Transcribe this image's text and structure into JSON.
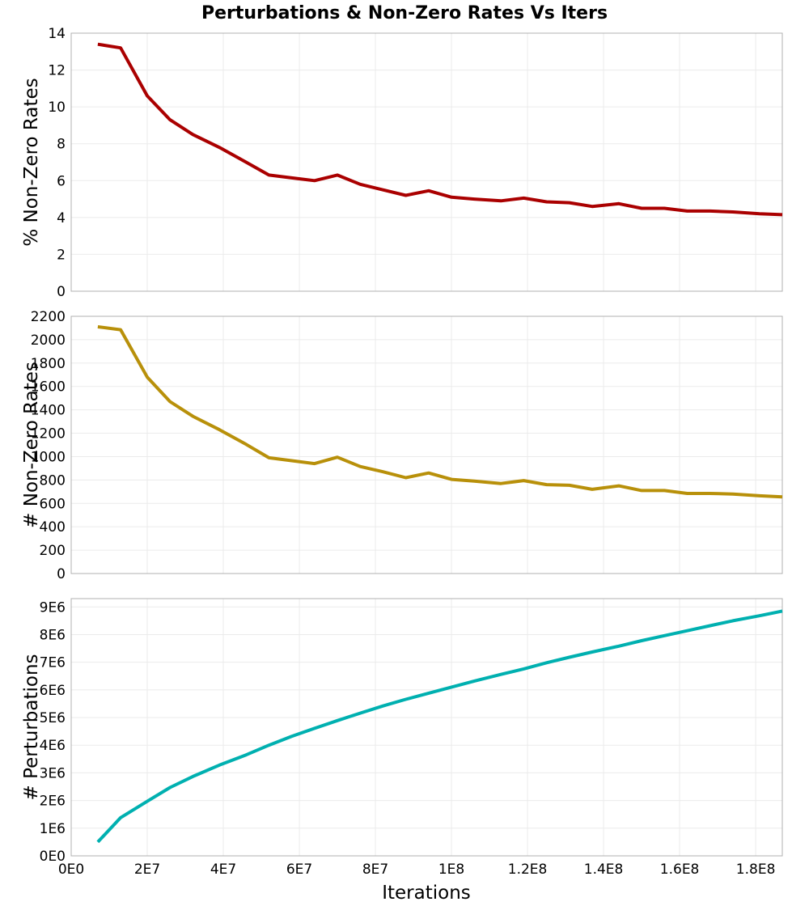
{
  "chart_data": {
    "type": "line",
    "title": "Perturbations & Non-Zero Rates Vs Iters",
    "xlabel": "Iterations",
    "xlim": [
      0,
      187000000
    ],
    "xticks": [
      0,
      20000000,
      40000000,
      60000000,
      80000000,
      100000000,
      120000000,
      140000000,
      160000000,
      180000000
    ],
    "xtick_labels": [
      "0E0",
      "2E7",
      "4E7",
      "6E7",
      "8E7",
      "1E8",
      "1.2E8",
      "1.4E8",
      "1.6E8",
      "1.8E8"
    ],
    "grid": true,
    "x": [
      7000000,
      13000000,
      20000000,
      26000000,
      32000000,
      39000000,
      46000000,
      52000000,
      58000000,
      64000000,
      70000000,
      76000000,
      82000000,
      88000000,
      94000000,
      100000000,
      106000000,
      113000000,
      119000000,
      125000000,
      131000000,
      137000000,
      144000000,
      150000000,
      156000000,
      162000000,
      168000000,
      174000000,
      181000000,
      187000000
    ],
    "subplots": [
      {
        "ylabel": "% Non-Zero Rates",
        "ylim": [
          0,
          14
        ],
        "yticks": [
          0,
          2,
          4,
          6,
          8,
          10,
          12,
          14
        ],
        "ytick_labels": [
          "0",
          "2",
          "4",
          "6",
          "8",
          "10",
          "12",
          "14"
        ],
        "color": "#aa0000",
        "values": [
          13.4,
          13.2,
          10.6,
          9.3,
          8.5,
          7.8,
          7.0,
          6.3,
          6.15,
          6.0,
          6.3,
          5.8,
          5.5,
          5.2,
          5.45,
          5.1,
          5.0,
          4.9,
          5.05,
          4.85,
          4.8,
          4.6,
          4.75,
          4.5,
          4.5,
          4.35,
          4.35,
          4.3,
          4.2,
          4.15
        ]
      },
      {
        "ylabel": "# Non-Zero Rates",
        "ylim": [
          0,
          2200
        ],
        "yticks": [
          0,
          200,
          400,
          600,
          800,
          1000,
          1200,
          1400,
          1600,
          1800,
          2000,
          2200
        ],
        "ytick_labels": [
          "0",
          "200",
          "400",
          "600",
          "800",
          "1000",
          "1200",
          "1400",
          "1600",
          "1800",
          "2000",
          "2200"
        ],
        "color": "#b8900a",
        "values": [
          2110,
          2085,
          1680,
          1470,
          1345,
          1230,
          1105,
          990,
          965,
          940,
          995,
          915,
          870,
          820,
          860,
          805,
          790,
          770,
          795,
          760,
          755,
          720,
          750,
          710,
          710,
          685,
          685,
          680,
          665,
          655
        ]
      },
      {
        "ylabel": "# Perturbations",
        "ylim": [
          0,
          9300000
        ],
        "yticks": [
          0,
          1000000,
          2000000,
          3000000,
          4000000,
          5000000,
          6000000,
          7000000,
          8000000,
          9000000
        ],
        "ytick_labels": [
          "0E0",
          "1E6",
          "2E6",
          "3E6",
          "4E6",
          "5E6",
          "6E6",
          "7E6",
          "8E6",
          "9E6"
        ],
        "color": "#00b0b0",
        "values": [
          500000,
          1380000,
          1970000,
          2470000,
          2870000,
          3280000,
          3650000,
          4000000,
          4320000,
          4610000,
          4890000,
          5160000,
          5420000,
          5660000,
          5880000,
          6100000,
          6320000,
          6560000,
          6760000,
          6980000,
          7180000,
          7370000,
          7580000,
          7780000,
          7960000,
          8140000,
          8320000,
          8500000,
          8680000,
          8850000
        ]
      }
    ]
  }
}
